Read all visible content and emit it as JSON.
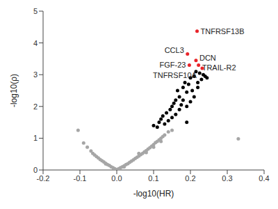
{
  "chart_data": {
    "type": "scatter",
    "xlabel": "-log10(HR)",
    "ylabel": "-log10(ρ)",
    "xlim": [
      -0.2,
      0.4
    ],
    "ylim": [
      0,
      5
    ],
    "xticks": [
      -0.2,
      -0.1,
      {
        "value": 0,
        "label": "0.0"
      },
      0.1,
      0.2,
      0.3,
      0.4
    ],
    "yticks": [
      0,
      1,
      2,
      3,
      4,
      5
    ],
    "grid": false,
    "marker": "circle",
    "series": [
      {
        "color": "#a6a6a6",
        "x": [
          -0.105,
          -0.09,
          -0.08,
          -0.07,
          -0.065,
          -0.06,
          -0.055,
          -0.05,
          -0.045,
          -0.04,
          -0.035,
          -0.03,
          -0.025,
          -0.02,
          -0.015,
          -0.01,
          -0.005,
          0.0,
          0.005,
          0.01,
          0.015,
          0.02,
          0.025,
          0.03,
          0.035,
          0.04,
          0.045,
          0.05,
          0.055,
          0.06,
          0.065,
          0.07,
          0.075,
          0.08,
          0.085,
          0.09,
          0.095,
          0.1,
          0.105,
          0.11,
          0.115,
          0.12,
          0.125,
          0.13,
          0.14,
          0.15,
          0.33,
          0.06,
          0.08,
          0.1,
          0.12,
          -0.03,
          0.02
        ],
        "values": [
          1.25,
          0.85,
          0.72,
          0.6,
          0.52,
          0.47,
          0.42,
          0.38,
          0.33,
          0.29,
          0.25,
          0.21,
          0.17,
          0.14,
          0.1,
          0.07,
          0.04,
          0.01,
          0.04,
          0.07,
          0.1,
          0.13,
          0.17,
          0.2,
          0.24,
          0.28,
          0.32,
          0.36,
          0.4,
          0.44,
          0.48,
          0.52,
          0.57,
          0.61,
          0.66,
          0.7,
          0.75,
          0.8,
          0.86,
          0.9,
          0.95,
          1.0,
          1.05,
          1.1,
          1.2,
          1.25,
          0.98,
          0.52,
          0.55,
          0.72,
          0.9,
          0.19,
          0.1
        ]
      },
      {
        "color": "#000000",
        "x": [
          0.1,
          0.11,
          0.115,
          0.12,
          0.125,
          0.13,
          0.135,
          0.14,
          0.145,
          0.15,
          0.15,
          0.155,
          0.16,
          0.16,
          0.165,
          0.17,
          0.17,
          0.175,
          0.18,
          0.18,
          0.185,
          0.19,
          0.19,
          0.195,
          0.2,
          0.2,
          0.205,
          0.21,
          0.21,
          0.215,
          0.22,
          0.225,
          0.23,
          0.235,
          0.24,
          0.245,
          0.19,
          0.22
        ],
        "values": [
          1.4,
          1.35,
          1.5,
          1.6,
          1.7,
          1.45,
          1.8,
          1.55,
          1.9,
          2.0,
          1.65,
          2.1,
          1.75,
          2.2,
          2.5,
          1.9,
          2.3,
          2.05,
          2.6,
          2.2,
          2.75,
          2.45,
          2.0,
          2.7,
          2.15,
          2.9,
          2.5,
          2.95,
          2.3,
          3.1,
          2.75,
          3.05,
          2.85,
          3.0,
          2.95,
          2.9,
          1.5,
          2.6
        ]
      },
      {
        "color": "#e8242a",
        "x": [
          0.218,
          0.192,
          0.215,
          0.197,
          0.222,
          0.232
        ],
        "values": [
          4.37,
          3.65,
          3.45,
          3.3,
          3.3,
          3.2
        ],
        "labels": [
          "TNFRSF13B",
          "CCL3",
          "DCN",
          "FGF-23",
          "TRAIL-R2",
          "TNFRSF10A"
        ]
      }
    ]
  }
}
